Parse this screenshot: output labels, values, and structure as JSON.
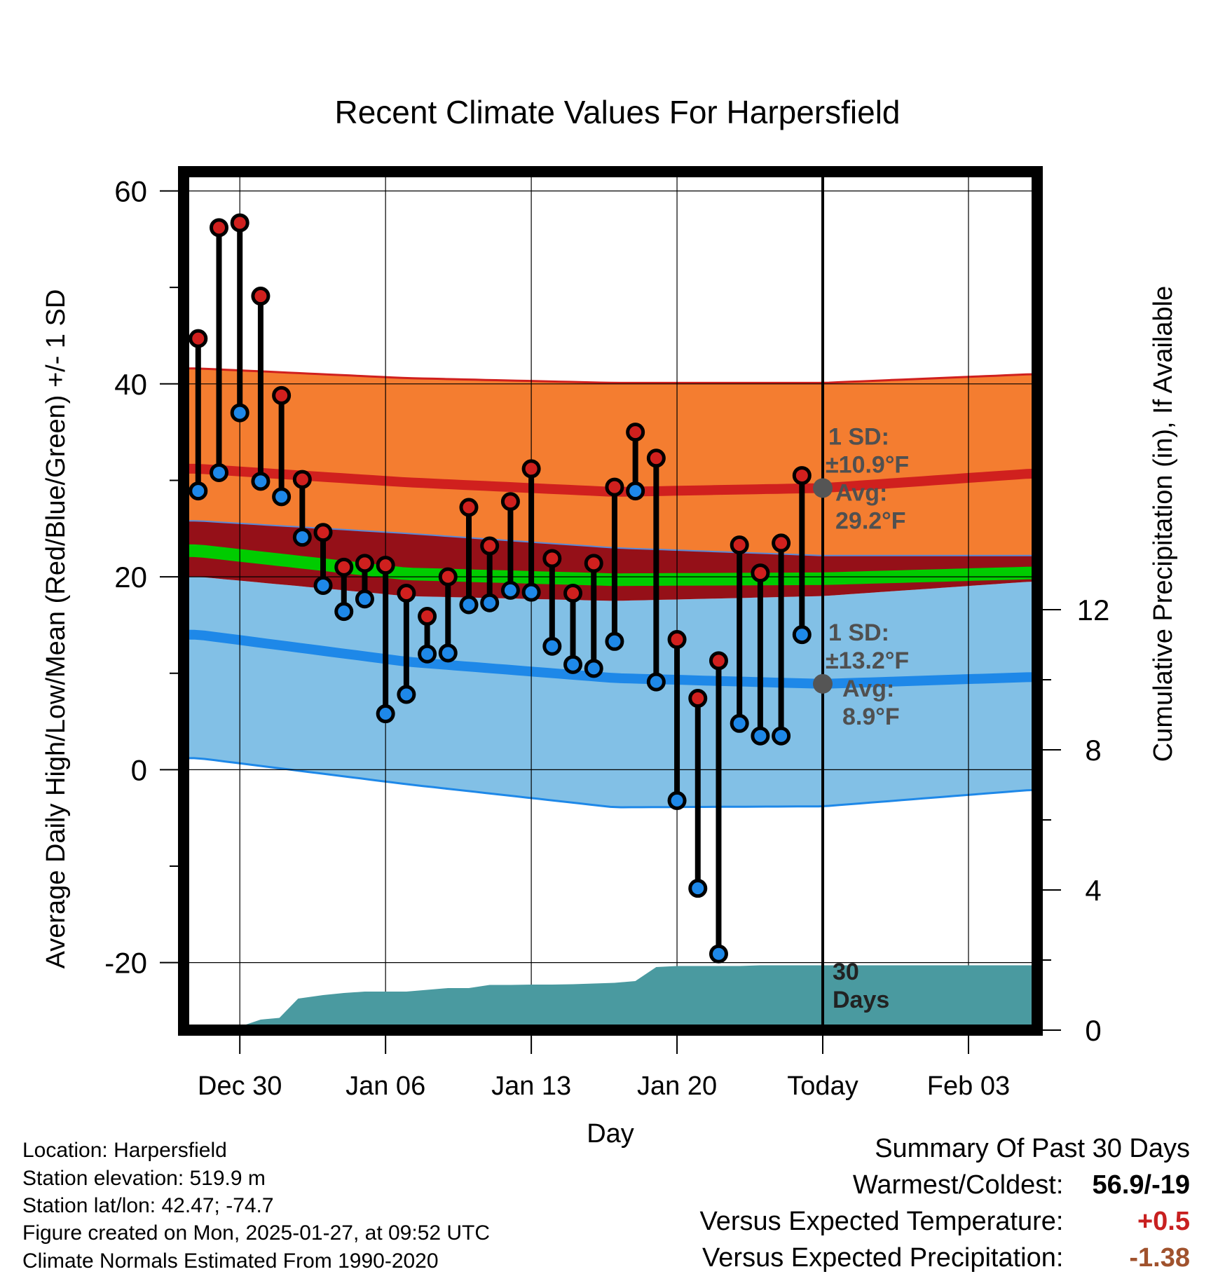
{
  "chart_data": {
    "type": "line",
    "title": "Recent Climate Values For Harpersfield",
    "xlabel": "Day",
    "ylabel": "Average Daily High/Low/Mean (Red/Blue/Green) +/- 1 SD",
    "y2label": "Cumulative Precipitation (in), If Available",
    "x_tick_labels": [
      "Dec 30",
      "Jan 06",
      "Jan 13",
      "Jan 20",
      "Today",
      "Feb 03"
    ],
    "x_tick_days": [
      2,
      9,
      16,
      23,
      30,
      37
    ],
    "xlim": [
      -0.7,
      40.3
    ],
    "ylim": [
      -27,
      62
    ],
    "y_ticks": [
      60,
      40,
      20,
      0,
      -20
    ],
    "y2lim": [
      0,
      24.5
    ],
    "y2_ticks": [
      12,
      8,
      4,
      0
    ],
    "today_day": 30,
    "grid": true,
    "days": [
      0,
      1,
      2,
      3,
      4,
      5,
      6,
      7,
      8,
      9,
      10,
      11,
      12,
      13,
      14,
      15,
      16,
      17,
      18,
      19,
      20,
      21,
      22,
      23,
      24,
      25,
      26,
      27,
      28,
      29
    ],
    "series": [
      {
        "name": "Daily High",
        "values": [
          44.7,
          56.2,
          56.7,
          49.1,
          38.8,
          30.1,
          24.6,
          21.0,
          21.4,
          21.2,
          18.3,
          15.9,
          20.0,
          27.2,
          23.2,
          27.8,
          31.2,
          21.9,
          18.3,
          21.4,
          29.3,
          35.0,
          32.3,
          13.5,
          7.4,
          11.3,
          23.3,
          20.4,
          23.5,
          30.5
        ],
        "color": "#d0201e"
      },
      {
        "name": "Daily Low",
        "values": [
          28.9,
          30.8,
          37.0,
          29.9,
          28.3,
          24.1,
          19.1,
          16.4,
          17.7,
          5.8,
          7.8,
          12.0,
          12.1,
          17.1,
          17.3,
          18.6,
          18.4,
          12.8,
          10.9,
          10.5,
          13.3,
          28.9,
          9.1,
          -3.2,
          -12.3,
          -19.1,
          4.8,
          3.5,
          3.5,
          14.0
        ],
        "color": "#1e88e8"
      }
    ],
    "normal_high": {
      "days": [
        0,
        10,
        20,
        30,
        40
      ],
      "mean": [
        31.2,
        29.8,
        28.8,
        29.2,
        30.7
      ],
      "upper": [
        41.6,
        40.6,
        40.1,
        40.1,
        41.0
      ],
      "lower": [
        25.8,
        24.5,
        23.0,
        22.2,
        22.2
      ],
      "color": "#d0201e"
    },
    "normal_low": {
      "days": [
        0,
        10,
        20,
        30,
        40
      ],
      "mean": [
        14.0,
        11.2,
        9.5,
        8.9,
        9.6
      ],
      "upper": [
        20.0,
        18.0,
        17.5,
        18.0,
        19.5
      ],
      "lower": [
        1.2,
        -1.5,
        -3.9,
        -3.8,
        -2.1
      ],
      "color": "#1e88e8"
    },
    "normal_mean": {
      "days": [
        0,
        10,
        20,
        30,
        40
      ],
      "values": [
        22.7,
        20.3,
        19.7,
        19.8,
        20.4
      ],
      "color": "#00cc00"
    },
    "precipitation": {
      "days": [
        0,
        1.3,
        2,
        3,
        3.9,
        4.8,
        6,
        7,
        8,
        9,
        10,
        11,
        12,
        13,
        14,
        15,
        16,
        17,
        18,
        19,
        20,
        21,
        22,
        23,
        24,
        25,
        26,
        27,
        28,
        29,
        30,
        33,
        36,
        40.3
      ],
      "values": [
        0,
        0,
        0.1,
        0.3,
        0.35,
        0.9,
        1.0,
        1.06,
        1.1,
        1.1,
        1.1,
        1.15,
        1.2,
        1.2,
        1.29,
        1.29,
        1.3,
        1.3,
        1.31,
        1.33,
        1.35,
        1.4,
        1.8,
        1.83,
        1.83,
        1.83,
        1.83,
        1.85,
        1.85,
        1.85,
        1.85,
        1.85,
        1.85,
        1.85
      ],
      "color": "#4a9aa0"
    },
    "annotations": {
      "high_sd_label": "1 SD:",
      "high_sd_value": "±10.9°F",
      "high_avg_label": "Avg:",
      "high_avg_value": "29.2°F",
      "low_sd_label": "1 SD:",
      "low_sd_value": "±13.2°F",
      "low_avg_label": "Avg:",
      "low_avg_value": "8.9°F",
      "days_count": "30",
      "days_label": "Days"
    }
  },
  "info": {
    "location": "Location: Harpersfield",
    "elevation": "Station elevation: 519.9 m",
    "latlon": "Station lat/lon: 42.47; -74.7",
    "created": "Figure created on Mon, 2025-01-27, at 09:52 UTC",
    "normals": "Climate Normals Estimated From 1990-2020"
  },
  "summary": {
    "heading": "Summary Of Past 30 Days",
    "warmest_label": "Warmest/Coldest:",
    "warmest_value": "56.9/-19",
    "temp_label": "Versus Expected Temperature:",
    "temp_value": "+0.5",
    "temp_color": "#c82020",
    "precip_label": "Versus Expected Precipitation:",
    "precip_value": "-1.38",
    "precip_color": "#a0522d"
  }
}
